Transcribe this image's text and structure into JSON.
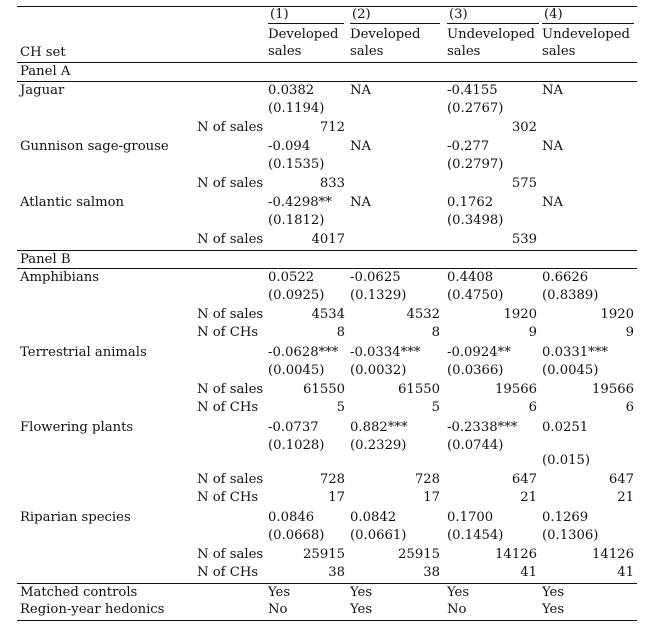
{
  "header": {
    "numbers": [
      "(1)",
      "(2)",
      "(3)",
      "(4)"
    ],
    "line1": [
      "Developed",
      "Developed",
      "Undeveloped",
      "Undeveloped"
    ],
    "line2": [
      "sales",
      "sales",
      "sales",
      "sales"
    ],
    "ch_set": "CH set"
  },
  "panelA": {
    "title": "Panel A",
    "groups": [
      {
        "name": "Jaguar",
        "coef": [
          "0.0382",
          "NA",
          "-0.4155",
          "NA"
        ],
        "se": [
          "(0.1194)",
          "",
          "(0.2767)",
          ""
        ],
        "sales_label": "N of sales",
        "sales": [
          "712",
          "",
          "302",
          ""
        ]
      },
      {
        "name": "Gunnison sage-grouse",
        "coef": [
          "-0.094",
          "NA",
          "-0.277",
          "NA"
        ],
        "se": [
          "(0.1535)",
          "",
          "(0.2797)",
          ""
        ],
        "sales_label": "N of sales",
        "sales": [
          "833",
          "",
          "575",
          ""
        ]
      },
      {
        "name": "Atlantic salmon",
        "coef": [
          "-0.4298**",
          "NA",
          "0.1762",
          "NA"
        ],
        "se": [
          "(0.1812)",
          "",
          "(0.3498)",
          ""
        ],
        "sales_label": "N of sales",
        "sales": [
          "4017",
          "",
          "539",
          ""
        ]
      }
    ]
  },
  "panelB": {
    "title": "Panel B",
    "groups": [
      {
        "name": "Amphibians",
        "coef": [
          "0.0522",
          "-0.0625",
          "0.4408",
          "0.6626"
        ],
        "se": [
          "(0.0925)",
          "(0.1329)",
          "(0.4750)",
          "(0.8389)"
        ],
        "sales_label": "N of sales",
        "sales": [
          "4534",
          "4532",
          "1920",
          "1920"
        ],
        "chs_label": "N of CHs",
        "chs": [
          "8",
          "8",
          "9",
          "9"
        ]
      },
      {
        "name": "Terrestrial animals",
        "coef": [
          "-0.0628***",
          "-0.0334***",
          "-0.0924**",
          "0.0331***"
        ],
        "se": [
          "(0.0045)",
          "(0.0032)",
          "(0.0366)",
          "(0.0045)"
        ],
        "sales_label": "N of sales",
        "sales": [
          "61550",
          "61550",
          "19566",
          "19566"
        ],
        "chs_label": "N of CHs",
        "chs": [
          "5",
          "5",
          "6",
          "6"
        ]
      },
      {
        "name": "Flowering plants",
        "coef": [
          "-0.0737",
          "0.882***",
          "-0.2338***",
          "0.0251"
        ],
        "se": [
          "(0.1028)",
          "(0.2329)",
          "(0.0744)",
          ""
        ],
        "se_extra": "(0.015)",
        "sales_label": "N of sales",
        "sales": [
          "728",
          "728",
          "647",
          "647"
        ],
        "chs_label": "N of CHs",
        "chs": [
          "17",
          "17",
          "21",
          "21"
        ]
      },
      {
        "name": "Riparian species",
        "coef": [
          "0.0846",
          "0.0842",
          "0.1700",
          "0.1269"
        ],
        "se": [
          "(0.0668)",
          "(0.0661)",
          "(0.1454)",
          "(0.1306)"
        ],
        "sales_label": "N of sales",
        "sales": [
          "25915",
          "25915",
          "14126",
          "14126"
        ],
        "chs_label": "N of CHs",
        "chs": [
          "38",
          "38",
          "41",
          "41"
        ]
      }
    ]
  },
  "footer": {
    "matched": {
      "label": "Matched controls",
      "values": [
        "Yes",
        "Yes",
        "Yes",
        "Yes"
      ]
    },
    "hedonics": {
      "label": "Region-year hedonics",
      "values": [
        "No",
        "Yes",
        "No",
        "Yes"
      ]
    }
  }
}
